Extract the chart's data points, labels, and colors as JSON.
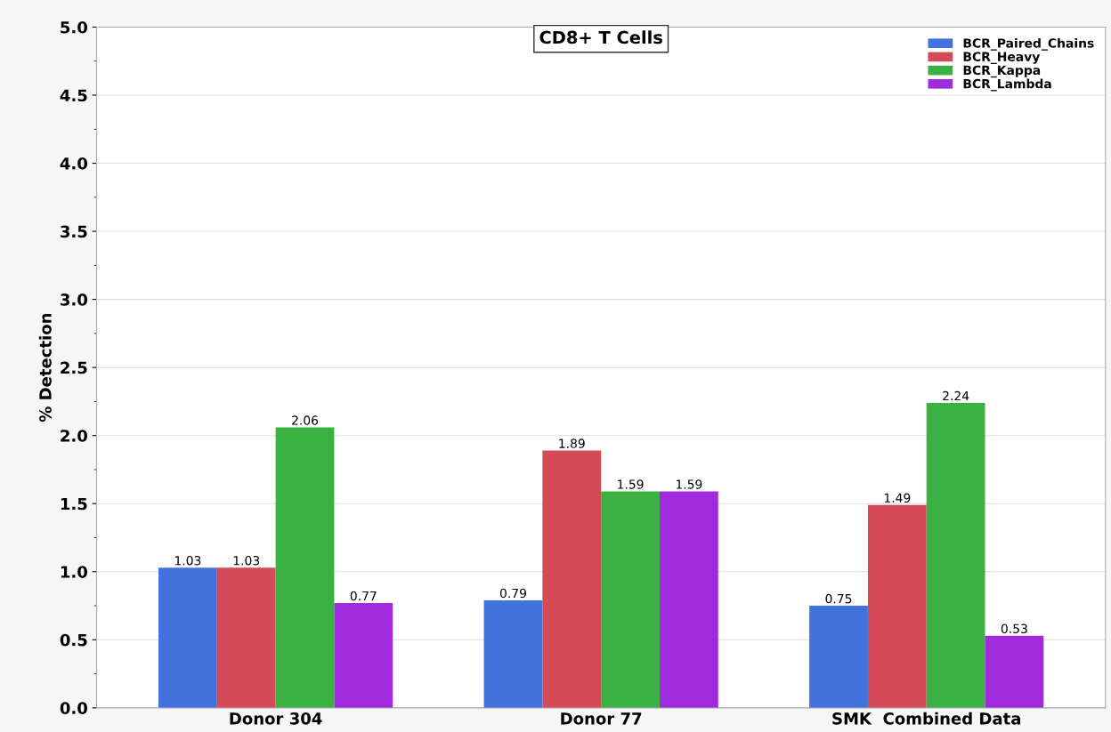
{
  "chart_data": {
    "type": "bar",
    "title": "CD8+ T Cells",
    "ylabel": "% Detection",
    "categories": [
      "Donor 304",
      "Donor 77",
      "SMK  Combined Data"
    ],
    "series": [
      {
        "name": "BCR_Paired_Chains",
        "color": "#4272de",
        "values": [
          1.03,
          0.79,
          0.75
        ]
      },
      {
        "name": "BCR_Heavy",
        "color": "#d44a57",
        "values": [
          1.03,
          1.89,
          1.49
        ]
      },
      {
        "name": "BCR_Kappa",
        "color": "#3bb143",
        "values": [
          2.06,
          1.59,
          2.24
        ]
      },
      {
        "name": "BCR_Lambda",
        "color": "#9f2bdc",
        "values": [
          0.77,
          1.59,
          0.53
        ]
      }
    ],
    "ylim": [
      0,
      5.0
    ],
    "yticks": [
      {
        "value": 0,
        "label": "0.0"
      },
      0.5,
      {
        "value": 1,
        "label": "1.0"
      },
      1.5,
      {
        "value": 2,
        "label": "2.0"
      },
      2.5,
      {
        "value": 3,
        "label": "3.0"
      },
      3.5,
      {
        "value": 4,
        "label": "4.0"
      },
      4.5,
      {
        "value": 5,
        "label": "5.0"
      }
    ],
    "grid": "y",
    "legend": "top right",
    "data_labels": true
  }
}
